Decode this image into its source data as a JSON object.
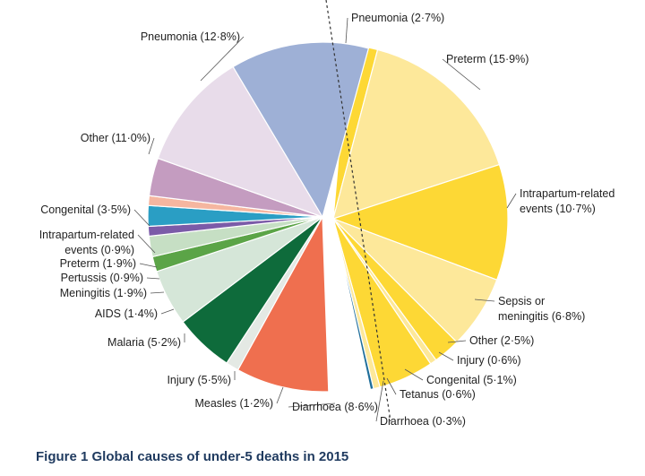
{
  "figure_caption": "Figure 1 Global causes of under-5 deaths in 2015",
  "chart_data": {
    "type": "pie",
    "title": "",
    "groups": [
      {
        "name": "",
        "slices": [
          {
            "label": "Pneumonia (2·7%)",
            "value": 2.7,
            "color": "#fdd835"
          },
          {
            "label": "Preterm (15·9%)",
            "value": 15.9,
            "color": "#fde89a"
          },
          {
            "label": [
              "Intrapartum-related",
              "events (10·7%)"
            ],
            "value": 10.7,
            "color": "#fdd835"
          },
          {
            "label": [
              "Sepsis or",
              "meningitis (6·8%)"
            ],
            "value": 6.8,
            "color": "#fde89a"
          },
          {
            "label": "Other (2·5%)",
            "value": 2.5,
            "color": "#fdd835"
          },
          {
            "label": "Injury (0·6%)",
            "value": 0.6,
            "color": "#fde89a"
          },
          {
            "label": "Congenital (5·1%)",
            "value": 5.1,
            "color": "#fdd835"
          },
          {
            "label": "Tetanus (0·6%)",
            "value": 0.6,
            "color": "#fde89a"
          },
          {
            "label": "Diarrhoea (0·3%)",
            "value": 0.3,
            "color": "#1f6e9a"
          }
        ]
      },
      {
        "name": "",
        "slices": [
          {
            "label": "Diarrhoea (8·6%)",
            "value": 8.6,
            "color": "#ef6f4f"
          },
          {
            "label": "Measles (1·2%)",
            "value": 1.2,
            "color": "#e4e9e4"
          },
          {
            "label": "Injury (5·5%)",
            "value": 5.5,
            "color": "#0e6b3b"
          },
          {
            "label": "Malaria (5·2%)",
            "value": 5.2,
            "color": "#d5e6d8"
          },
          {
            "label": "AIDS (1·4%)",
            "value": 1.4,
            "color": "#5ba447"
          },
          {
            "label": "Meningitis (1·9%)",
            "value": 1.9,
            "color": "#c6dfc4"
          },
          {
            "label": "Pertussis (0·9%)",
            "value": 0.9,
            "color": "#7b5ba8"
          },
          {
            "label": "Preterm (1·9%)",
            "value": 1.9,
            "color": "#2a9ec4"
          },
          {
            "label": [
              "Intrapartum-related",
              "events (0·9%)"
            ],
            "value": 0.9,
            "color": "#f5b6a0"
          },
          {
            "label": "Congenital (3·5%)",
            "value": 3.5,
            "color": "#c49cc0"
          },
          {
            "label": "Other (11·0%)",
            "value": 11.0,
            "color": "#e8dcea"
          },
          {
            "label": "Pneumonia (12·8%)",
            "value": 12.8,
            "color": "#9eb0d6"
          }
        ]
      }
    ]
  }
}
